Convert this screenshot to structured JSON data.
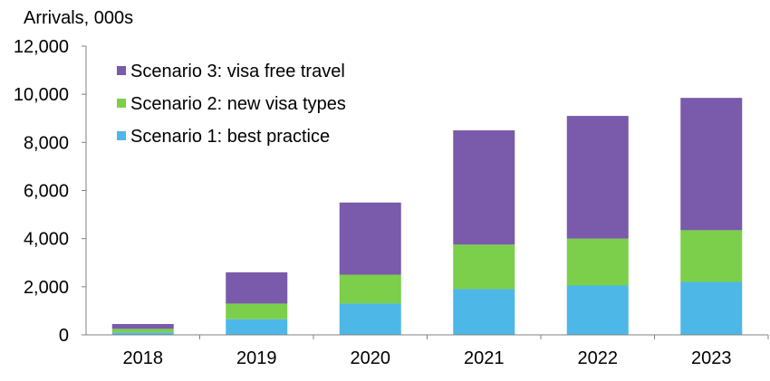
{
  "chart_data": {
    "type": "bar",
    "stacked": true,
    "title": "",
    "xlabel": "",
    "ylabel": "Arrivals, 000s",
    "ylim": [
      0,
      12000
    ],
    "yticks": [
      0,
      2000,
      4000,
      6000,
      8000,
      10000,
      12000
    ],
    "ytick_labels": [
      "0",
      "2,000",
      "4,000",
      "6,000",
      "8,000",
      "10,000",
      "12,000"
    ],
    "grid": false,
    "legend_position": "top-left",
    "categories": [
      "2018",
      "2019",
      "2020",
      "2021",
      "2022",
      "2023"
    ],
    "series": [
      {
        "name": "Scenario 1: best practice",
        "color": "#4db8e8",
        "values": [
          100,
          650,
          1300,
          1900,
          2050,
          2200
        ]
      },
      {
        "name": "Scenario 2: new visa types",
        "color": "#7ccf4a",
        "values": [
          150,
          650,
          1200,
          1850,
          1950,
          2150
        ]
      },
      {
        "name": "Scenario 3: visa free travel",
        "color": "#7a5aaa",
        "values": [
          200,
          1300,
          3000,
          4750,
          5100,
          5500
        ]
      }
    ]
  }
}
